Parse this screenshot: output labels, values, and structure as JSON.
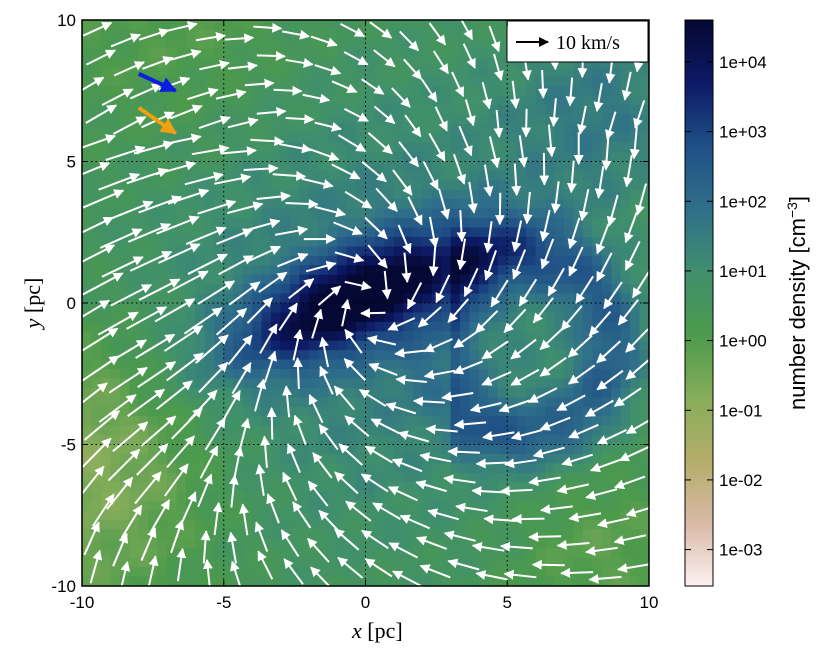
{
  "chart_data": {
    "type": "heatmap",
    "title": "",
    "xlabel_var": "x",
    "xlabel_unit": "[pc]",
    "ylabel_var": "y",
    "ylabel_unit": "[pc]",
    "xlim": [
      -10,
      10
    ],
    "ylim": [
      -10,
      10
    ],
    "xticks": [
      -10,
      -5,
      0,
      5,
      10
    ],
    "yticks": [
      -10,
      -5,
      0,
      5,
      10
    ],
    "xtick_labels": [
      "-10",
      "-5",
      "0",
      "5",
      "10"
    ],
    "ytick_labels": [
      "-10",
      "-5",
      "0",
      "5",
      "10"
    ],
    "grid": true,
    "grid_lines": [
      -5,
      0,
      5
    ],
    "colorbar": {
      "label": "number density [cm",
      "label_exp": "−3",
      "label_close": "]",
      "scale": "log",
      "range": [
        0.0003,
        40000
      ],
      "ticks": [
        0.001,
        0.01,
        0.1,
        1,
        10,
        100,
        1000,
        10000
      ],
      "tick_labels": [
        "1e-03",
        "1e-02",
        "1e-01",
        "1e+00",
        "1e+01",
        "1e+02",
        "1e+03",
        "1e+04"
      ],
      "colors": [
        "#fbf1f1",
        "#d9b9a6",
        "#b4ad6a",
        "#86ad5a",
        "#4c9a4c",
        "#3f8f6e",
        "#2f6f8a",
        "#1f4f86",
        "#0d1a66",
        "#050833"
      ]
    },
    "legend": {
      "placement": "top-right",
      "label": "10 km/s",
      "reference_speed_kms": 10
    },
    "highlight_arrows": [
      {
        "x": -8.0,
        "y": 8.1,
        "dx": 1.3,
        "dy": -0.6,
        "color": "#0b1de0"
      },
      {
        "x": -8.0,
        "y": 6.9,
        "dx": 1.3,
        "dy": -0.9,
        "color": "#f0a010"
      }
    ]
  }
}
